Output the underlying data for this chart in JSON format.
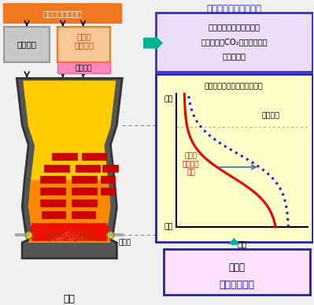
{
  "title_ferro": "フェロコークスの役割",
  "box2_title": "焼結鉱還元反応温度の低温化",
  "label_furnace_top": "炉頂",
  "label_tuyere": "羽口",
  "label_temp": "温度",
  "label_conventional": "従来操業",
  "label_ferro_use": "フェロ\nコークス\n使用",
  "label_blast_furnace": "高炉",
  "label_iron_ore": "鉄鉱石（焼結鉱）",
  "label_coke": "コークス",
  "label_ferro_coke": "フェロ\nコークス",
  "label_high_reactivity": "高反応性",
  "label_pulverized_coal": "微粉炭",
  "label_result_title": "高炉の",
  "label_result_sub": "還元材比低減",
  "label_box1_l1": "金属鉄の触媒効果により",
  "label_box1_l2": "コークスとCO₂との反応が低",
  "label_box1_l3": "温から促進",
  "bg_color": "#f0f0f0",
  "ferro_title_color": "#2222cc",
  "box1_border_color": "#3333cc",
  "box1_bg_color": "#eeddf8",
  "box2_border_color": "#2222aa",
  "box2_bg_color": "#fdffc8",
  "result_box_bg": "#fce0fc",
  "result_box_border": "#2222aa",
  "orange_box_color": "#f07820",
  "peach_box_color": "#f8c898",
  "coke_box_color": "#c8c8c8",
  "high_react_bg": "#ff88bb",
  "arrow_green": "#00b090",
  "line_red": "#ee0000",
  "line_blue_dotted": "#2222dd",
  "furnace_outer": "#555555",
  "furnace_inner_top": "#ffee00",
  "furnace_inner_bot": "#ff8800"
}
